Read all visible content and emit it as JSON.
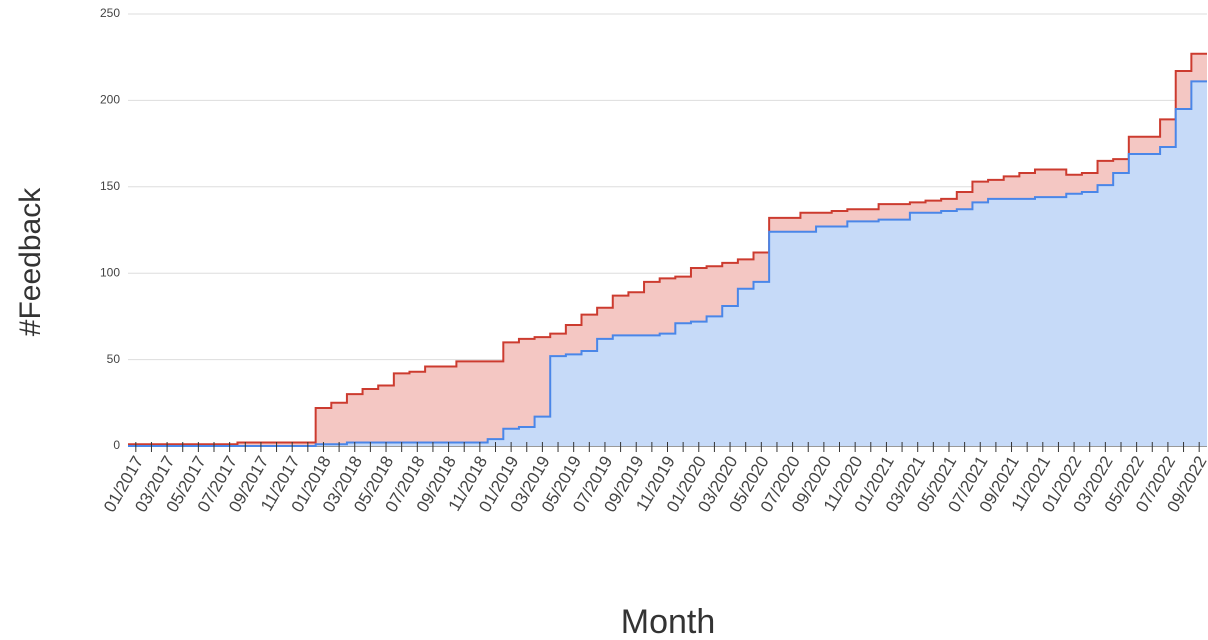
{
  "chart_data": {
    "type": "step-area",
    "x_label": "Month",
    "y_label": "#Feedback",
    "categories": [
      "01/2017",
      null,
      "03/2017",
      null,
      "05/2017",
      null,
      "07/2017",
      null,
      "09/2017",
      null,
      "11/2017",
      null,
      "01/2018",
      null,
      "03/2018",
      null,
      "05/2018",
      null,
      "07/2018",
      null,
      "09/2018",
      null,
      "11/2018",
      null,
      "01/2019",
      null,
      "03/2019",
      null,
      "05/2019",
      null,
      "07/2019",
      null,
      "09/2019",
      null,
      "11/2019",
      null,
      "01/2020",
      null,
      "03/2020",
      null,
      "05/2020",
      null,
      "07/2020",
      null,
      "09/2020",
      null,
      "11/2020",
      null,
      "01/2021",
      null,
      "03/2021",
      null,
      "05/2021",
      null,
      "07/2021",
      null,
      "09/2021",
      null,
      "11/2021",
      null,
      "01/2022",
      null,
      "03/2022",
      null,
      "05/2022",
      null,
      "07/2022",
      null,
      "09/2022"
    ],
    "series": [
      {
        "color": "#cc3b2f",
        "fill": "#f4c7c3",
        "values": [
          1,
          1,
          1,
          1,
          1,
          1,
          1,
          2,
          2,
          2,
          2,
          2,
          22,
          25,
          30,
          33,
          35,
          42,
          43,
          46,
          46,
          49,
          49,
          49,
          60,
          62,
          63,
          65,
          70,
          76,
          80,
          87,
          89,
          95,
          97,
          98,
          103,
          104,
          106,
          108,
          112,
          132,
          132,
          135,
          135,
          136,
          137,
          137,
          140,
          140,
          141,
          142,
          143,
          147,
          153,
          154,
          156,
          158,
          160,
          160,
          157,
          158,
          165,
          166,
          179,
          179,
          189,
          217,
          227
        ]
      },
      {
        "color": "#4a86e8",
        "fill": "#c6daf8",
        "values": [
          0,
          0,
          0,
          0,
          0,
          0,
          0,
          0,
          0,
          0,
          0,
          0,
          1,
          1,
          2,
          2,
          2,
          2,
          2,
          2,
          2,
          2,
          2,
          4,
          10,
          11,
          17,
          52,
          53,
          55,
          62,
          64,
          64,
          64,
          65,
          71,
          72,
          75,
          81,
          91,
          95,
          124,
          124,
          124,
          127,
          127,
          130,
          130,
          131,
          131,
          135,
          135,
          136,
          137,
          141,
          143,
          143,
          143,
          144,
          144,
          146,
          147,
          151,
          158,
          169,
          169,
          173,
          195,
          211
        ]
      }
    ],
    "ylim": [
      0,
      250
    ],
    "yticks": [
      0,
      50,
      100,
      150,
      200,
      250
    ],
    "grid": true
  }
}
